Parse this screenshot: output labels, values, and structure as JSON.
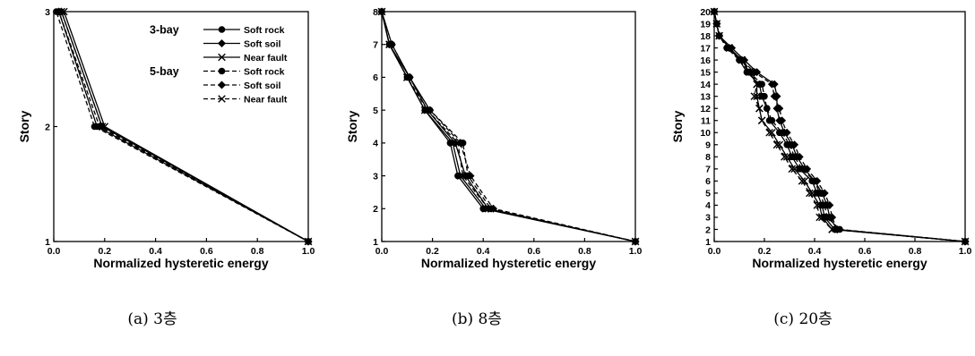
{
  "chart_data": [
    {
      "type": "line",
      "caption": "(a) 3층",
      "xlabel": "Normalized hysteretic energy",
      "ylabel": "Story",
      "xlim": [
        0,
        1
      ],
      "ylim": [
        1,
        3
      ],
      "xticks": [
        "0.0",
        "0.2",
        "0.4",
        "0.6",
        "0.8",
        "1.0"
      ],
      "yticks": [
        "1",
        "2",
        "3"
      ],
      "legend": {
        "position": "top-right",
        "groups": [
          {
            "label": "3-bay",
            "entries": [
              "Soft rock",
              "Soft soil",
              "Near fault"
            ]
          },
          {
            "label": "5-bay",
            "entries": [
              "Soft rock",
              "Soft soil",
              "Near fault"
            ]
          }
        ]
      },
      "series": [
        {
          "group": "3-bay",
          "label": "Soft rock",
          "marker": "circle",
          "dash": "solid",
          "points": [
            [
              1.0,
              1
            ],
            [
              0.17,
              2
            ],
            [
              0.02,
              3
            ]
          ]
        },
        {
          "group": "3-bay",
          "label": "Soft soil",
          "marker": "diamond",
          "dash": "solid",
          "points": [
            [
              1.0,
              1
            ],
            [
              0.19,
              2
            ],
            [
              0.03,
              3
            ]
          ]
        },
        {
          "group": "3-bay",
          "label": "Near fault",
          "marker": "x",
          "dash": "solid",
          "points": [
            [
              1.0,
              1
            ],
            [
              0.2,
              2
            ],
            [
              0.04,
              3
            ]
          ]
        },
        {
          "group": "5-bay",
          "label": "Soft rock",
          "marker": "circle",
          "dash": "dashed",
          "points": [
            [
              1.0,
              1
            ],
            [
              0.16,
              2
            ],
            [
              0.01,
              3
            ]
          ]
        },
        {
          "group": "5-bay",
          "label": "Soft soil",
          "marker": "diamond",
          "dash": "dashed",
          "points": [
            [
              1.0,
              1
            ],
            [
              0.18,
              2
            ],
            [
              0.02,
              3
            ]
          ]
        },
        {
          "group": "5-bay",
          "label": "Near fault",
          "marker": "x",
          "dash": "dashed",
          "points": [
            [
              1.0,
              1
            ],
            [
              0.19,
              2
            ],
            [
              0.03,
              3
            ]
          ]
        }
      ]
    },
    {
      "type": "line",
      "caption": "(b) 8층",
      "xlabel": "Normalized hysteretic energy",
      "ylabel": "Story",
      "xlim": [
        0,
        1
      ],
      "ylim": [
        1,
        8
      ],
      "xticks": [
        "0.0",
        "0.2",
        "0.4",
        "0.6",
        "0.8",
        "1.0"
      ],
      "yticks": [
        "1",
        "2",
        "3",
        "4",
        "5",
        "6",
        "7",
        "8"
      ],
      "series": [
        {
          "group": "3-bay",
          "label": "Soft rock",
          "marker": "circle",
          "dash": "solid",
          "points": [
            [
              1.0,
              1
            ],
            [
              0.4,
              2
            ],
            [
              0.3,
              3
            ],
            [
              0.27,
              4
            ],
            [
              0.17,
              5
            ],
            [
              0.1,
              6
            ],
            [
              0.03,
              7
            ],
            [
              0.0,
              8
            ]
          ]
        },
        {
          "group": "3-bay",
          "label": "Soft soil",
          "marker": "diamond",
          "dash": "solid",
          "points": [
            [
              1.0,
              1
            ],
            [
              0.42,
              2
            ],
            [
              0.33,
              3
            ],
            [
              0.29,
              4
            ],
            [
              0.18,
              5
            ],
            [
              0.11,
              6
            ],
            [
              0.03,
              7
            ],
            [
              0.0,
              8
            ]
          ]
        },
        {
          "group": "3-bay",
          "label": "Near fault",
          "marker": "x",
          "dash": "solid",
          "points": [
            [
              1.0,
              1
            ],
            [
              0.41,
              2
            ],
            [
              0.31,
              3
            ],
            [
              0.28,
              4
            ],
            [
              0.17,
              5
            ],
            [
              0.1,
              6
            ],
            [
              0.03,
              7
            ],
            [
              0.0,
              8
            ]
          ]
        },
        {
          "group": "5-bay",
          "label": "Soft rock",
          "marker": "circle",
          "dash": "dashed",
          "points": [
            [
              1.0,
              1
            ],
            [
              0.43,
              2
            ],
            [
              0.34,
              3
            ],
            [
              0.32,
              4
            ],
            [
              0.19,
              5
            ],
            [
              0.11,
              6
            ],
            [
              0.04,
              7
            ],
            [
              0.0,
              8
            ]
          ]
        },
        {
          "group": "5-bay",
          "label": "Soft soil",
          "marker": "diamond",
          "dash": "dashed",
          "points": [
            [
              1.0,
              1
            ],
            [
              0.44,
              2
            ],
            [
              0.35,
              3
            ],
            [
              0.31,
              4
            ],
            [
              0.19,
              5
            ],
            [
              0.11,
              6
            ],
            [
              0.04,
              7
            ],
            [
              0.0,
              8
            ]
          ]
        },
        {
          "group": "5-bay",
          "label": "Near fault",
          "marker": "x",
          "dash": "dashed",
          "points": [
            [
              1.0,
              1
            ],
            [
              0.42,
              2
            ],
            [
              0.32,
              3
            ],
            [
              0.3,
              4
            ],
            [
              0.18,
              5
            ],
            [
              0.1,
              6
            ],
            [
              0.03,
              7
            ],
            [
              0.0,
              8
            ]
          ]
        }
      ]
    },
    {
      "type": "line",
      "caption": "(c) 20층",
      "xlabel": "Normalized hysteretic energy",
      "ylabel": "Story",
      "xlim": [
        0,
        1
      ],
      "ylim": [
        1,
        20
      ],
      "xticks": [
        "0.0",
        "0.2",
        "0.4",
        "0.6",
        "0.8",
        "1.0"
      ],
      "yticks": [
        "1",
        "2",
        "3",
        "4",
        "5",
        "6",
        "7",
        "8",
        "9",
        "10",
        "11",
        "12",
        "13",
        "14",
        "15",
        "16",
        "17",
        "18",
        "19",
        "20"
      ],
      "series": [
        {
          "group": "3-bay",
          "label": "Soft rock",
          "marker": "circle",
          "dash": "solid",
          "points": [
            [
              1.0,
              1
            ],
            [
              0.48,
              2
            ],
            [
              0.44,
              3
            ],
            [
              0.43,
              4
            ],
            [
              0.41,
              5
            ],
            [
              0.39,
              6
            ],
            [
              0.34,
              7
            ],
            [
              0.31,
              8
            ],
            [
              0.29,
              9
            ],
            [
              0.26,
              10
            ],
            [
              0.22,
              11
            ],
            [
              0.21,
              12
            ],
            [
              0.19,
              13
            ],
            [
              0.18,
              14
            ],
            [
              0.13,
              15
            ],
            [
              0.1,
              16
            ],
            [
              0.06,
              17
            ],
            [
              0.02,
              18
            ],
            [
              0.01,
              19
            ],
            [
              0.0,
              20
            ]
          ]
        },
        {
          "group": "3-bay",
          "label": "Soft soil",
          "marker": "diamond",
          "dash": "solid",
          "points": [
            [
              1.0,
              1
            ],
            [
              0.49,
              2
            ],
            [
              0.46,
              3
            ],
            [
              0.45,
              4
            ],
            [
              0.43,
              5
            ],
            [
              0.4,
              6
            ],
            [
              0.36,
              7
            ],
            [
              0.33,
              8
            ],
            [
              0.31,
              9
            ],
            [
              0.28,
              10
            ],
            [
              0.26,
              11
            ],
            [
              0.25,
              12
            ],
            [
              0.25,
              13
            ],
            [
              0.24,
              14
            ],
            [
              0.17,
              15
            ],
            [
              0.12,
              16
            ],
            [
              0.07,
              17
            ],
            [
              0.02,
              18
            ],
            [
              0.01,
              19
            ],
            [
              0.0,
              20
            ]
          ]
        },
        {
          "group": "3-bay",
          "label": "Near fault",
          "marker": "x",
          "dash": "solid",
          "points": [
            [
              1.0,
              1
            ],
            [
              0.47,
              2
            ],
            [
              0.43,
              3
            ],
            [
              0.42,
              4
            ],
            [
              0.39,
              5
            ],
            [
              0.36,
              6
            ],
            [
              0.32,
              7
            ],
            [
              0.29,
              8
            ],
            [
              0.26,
              9
            ],
            [
              0.23,
              10
            ],
            [
              0.19,
              11
            ],
            [
              0.18,
              12
            ],
            [
              0.17,
              13
            ],
            [
              0.17,
              14
            ],
            [
              0.14,
              15
            ],
            [
              0.11,
              16
            ],
            [
              0.06,
              17
            ],
            [
              0.02,
              18
            ],
            [
              0.01,
              19
            ],
            [
              0.0,
              20
            ]
          ]
        },
        {
          "group": "5-bay",
          "label": "Soft rock",
          "marker": "circle",
          "dash": "dashed",
          "points": [
            [
              1.0,
              1
            ],
            [
              0.5,
              2
            ],
            [
              0.45,
              3
            ],
            [
              0.44,
              4
            ],
            [
              0.42,
              5
            ],
            [
              0.4,
              6
            ],
            [
              0.35,
              7
            ],
            [
              0.32,
              8
            ],
            [
              0.3,
              9
            ],
            [
              0.27,
              10
            ],
            [
              0.23,
              11
            ],
            [
              0.21,
              12
            ],
            [
              0.2,
              13
            ],
            [
              0.19,
              14
            ],
            [
              0.14,
              15
            ],
            [
              0.1,
              16
            ],
            [
              0.05,
              17
            ],
            [
              0.02,
              18
            ],
            [
              0.01,
              19
            ],
            [
              0.0,
              20
            ]
          ]
        },
        {
          "group": "5-bay",
          "label": "Soft soil",
          "marker": "diamond",
          "dash": "dashed",
          "points": [
            [
              1.0,
              1
            ],
            [
              0.49,
              2
            ],
            [
              0.47,
              3
            ],
            [
              0.46,
              4
            ],
            [
              0.44,
              5
            ],
            [
              0.41,
              6
            ],
            [
              0.37,
              7
            ],
            [
              0.34,
              8
            ],
            [
              0.32,
              9
            ],
            [
              0.29,
              10
            ],
            [
              0.27,
              11
            ],
            [
              0.26,
              12
            ],
            [
              0.24,
              13
            ],
            [
              0.23,
              14
            ],
            [
              0.16,
              15
            ],
            [
              0.11,
              16
            ],
            [
              0.06,
              17
            ],
            [
              0.02,
              18
            ],
            [
              0.01,
              19
            ],
            [
              0.0,
              20
            ]
          ]
        },
        {
          "group": "5-bay",
          "label": "Near fault",
          "marker": "x",
          "dash": "dashed",
          "points": [
            [
              1.0,
              1
            ],
            [
              0.47,
              2
            ],
            [
              0.42,
              3
            ],
            [
              0.41,
              4
            ],
            [
              0.38,
              5
            ],
            [
              0.35,
              6
            ],
            [
              0.31,
              7
            ],
            [
              0.28,
              8
            ],
            [
              0.25,
              9
            ],
            [
              0.22,
              10
            ],
            [
              0.19,
              11
            ],
            [
              0.18,
              12
            ],
            [
              0.16,
              13
            ],
            [
              0.17,
              14
            ],
            [
              0.15,
              15
            ],
            [
              0.11,
              16
            ],
            [
              0.06,
              17
            ],
            [
              0.02,
              18
            ],
            [
              0.01,
              19
            ],
            [
              0.0,
              20
            ]
          ]
        }
      ]
    }
  ]
}
